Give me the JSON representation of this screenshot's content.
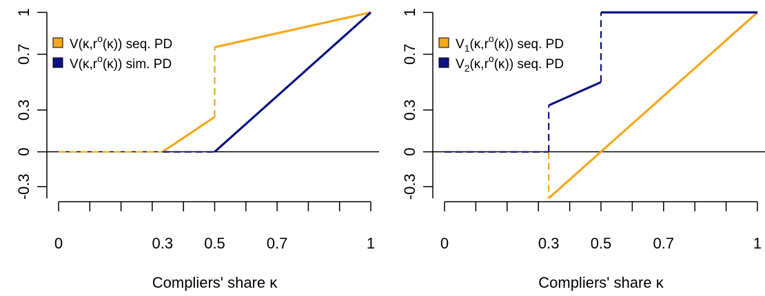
{
  "colors": {
    "seq": "#F5A81C",
    "sim": "#0D1283",
    "axis": "#000000"
  },
  "charts": [
    {
      "type": "line",
      "xlabel": "Compliers' share κ",
      "xticks": [
        {
          "v": 0,
          "label": "0"
        },
        {
          "v": 0.333,
          "label": "0.3"
        },
        {
          "v": 0.5,
          "label": "0.5"
        },
        {
          "v": 0.7,
          "label": "0.7"
        },
        {
          "v": 1,
          "label": "1"
        }
      ],
      "yticks": [
        {
          "v": -0.3,
          "label": "-0.3"
        },
        {
          "v": 0,
          "label": "0"
        },
        {
          "v": 0.3,
          "label": "0.3"
        },
        {
          "v": 0.7,
          "label": "0.7"
        },
        {
          "v": 1,
          "label": "1"
        }
      ],
      "xlim": [
        0,
        1
      ],
      "ylim": [
        -0.333,
        1
      ],
      "legend": [
        {
          "text": "V(κ,r",
          "sup": "o",
          "after": "(κ)) seq. PD",
          "sub": "",
          "color_key": "seq"
        },
        {
          "text": "V(κ,r",
          "sup": "o",
          "after": "(κ)) sim. PD",
          "sub": "",
          "color_key": "sim"
        }
      ],
      "series": [
        {
          "color_key": "seq",
          "segments": [
            {
              "style": "dashed",
              "points": [
                [
                  0,
                  0
                ],
                [
                  0.333,
                  0
                ]
              ]
            },
            {
              "style": "solid",
              "points": [
                [
                  0.333,
                  0
                ],
                [
                  0.5,
                  0.25
                ]
              ]
            },
            {
              "style": "dashed",
              "points": [
                [
                  0.5,
                  0.25
                ],
                [
                  0.5,
                  0.75
                ]
              ]
            },
            {
              "style": "solid",
              "points": [
                [
                  0.5,
                  0.75
                ],
                [
                  1,
                  1
                ]
              ]
            }
          ]
        },
        {
          "color_key": "sim",
          "segments": [
            {
              "style": "dashed",
              "points": [
                [
                  0.333,
                  0
                ],
                [
                  0.5,
                  0
                ]
              ]
            },
            {
              "style": "solid",
              "points": [
                [
                  0.5,
                  0
                ],
                [
                  1,
                  1
                ]
              ]
            }
          ]
        }
      ]
    },
    {
      "type": "line",
      "xlabel": "Compliers' share κ",
      "xticks": [
        {
          "v": 0,
          "label": "0"
        },
        {
          "v": 0.333,
          "label": "0.3"
        },
        {
          "v": 0.5,
          "label": "0.5"
        },
        {
          "v": 0.7,
          "label": "0.7"
        },
        {
          "v": 1,
          "label": "1"
        }
      ],
      "yticks": [
        {
          "v": -0.3,
          "label": "-0.3"
        },
        {
          "v": 0,
          "label": "0"
        },
        {
          "v": 0.3,
          "label": "0.3"
        },
        {
          "v": 0.7,
          "label": "0.7"
        },
        {
          "v": 1,
          "label": "1"
        }
      ],
      "xlim": [
        0,
        1
      ],
      "ylim": [
        -0.333,
        1
      ],
      "legend": [
        {
          "text": "V",
          "sub": "1",
          "mid": "(κ,r",
          "sup": "o",
          "after": "(κ)) seq. PD",
          "color_key": "seq"
        },
        {
          "text": "V",
          "sub": "2",
          "mid": "(κ,r",
          "sup": "o",
          "after": "(κ)) seq. PD",
          "color_key": "sim"
        }
      ],
      "series": [
        {
          "color_key": "seq",
          "segments": [
            {
              "style": "dashed",
              "points": [
                [
                  0,
                  0
                ],
                [
                  0.333,
                  0
                ]
              ]
            },
            {
              "style": "dashed",
              "points": [
                [
                  0.333,
                  0
                ],
                [
                  0.333,
                  -0.333
                ]
              ]
            },
            {
              "style": "solid",
              "points": [
                [
                  0.333,
                  -0.333
                ],
                [
                  1,
                  1
                ]
              ]
            }
          ]
        },
        {
          "color_key": "sim",
          "segments": [
            {
              "style": "dashed",
              "points": [
                [
                  0,
                  0
                ],
                [
                  0.333,
                  0
                ]
              ]
            },
            {
              "style": "dashed",
              "points": [
                [
                  0.333,
                  0
                ],
                [
                  0.333,
                  0.333
                ]
              ]
            },
            {
              "style": "solid",
              "points": [
                [
                  0.333,
                  0.333
                ],
                [
                  0.5,
                  0.5
                ]
              ]
            },
            {
              "style": "dashed",
              "points": [
                [
                  0.5,
                  0.5
                ],
                [
                  0.5,
                  1
                ]
              ]
            },
            {
              "style": "solid",
              "points": [
                [
                  0.5,
                  1
                ],
                [
                  1,
                  1
                ]
              ]
            }
          ]
        }
      ]
    }
  ],
  "chart_data": [
    {
      "type": "line",
      "xlabel": "Compliers' share κ",
      "ylabel": "",
      "xlim": [
        0,
        1
      ],
      "ylim": [
        -0.333,
        1
      ],
      "xtick_labels": [
        "0",
        "0.3",
        "0.5",
        "0.7",
        "1"
      ],
      "ytick_labels": [
        "-0.3",
        "0",
        "0.3",
        "0.7",
        "1"
      ],
      "legend_position": "upper-left",
      "series": [
        {
          "name": "V(κ,rᵒ(κ)) seq. PD",
          "color": "#F5A81C",
          "x": [
            0,
            0.333,
            0.5,
            0.5,
            1
          ],
          "y": [
            0,
            0,
            0.25,
            0.75,
            1
          ]
        },
        {
          "name": "V(κ,rᵒ(κ)) sim. PD",
          "color": "#0D1283",
          "x": [
            0.333,
            0.5,
            1
          ],
          "y": [
            0,
            0,
            1
          ]
        }
      ]
    },
    {
      "type": "line",
      "xlabel": "Compliers' share κ",
      "ylabel": "",
      "xlim": [
        0,
        1
      ],
      "ylim": [
        -0.333,
        1
      ],
      "xtick_labels": [
        "0",
        "0.3",
        "0.5",
        "0.7",
        "1"
      ],
      "ytick_labels": [
        "-0.3",
        "0",
        "0.3",
        "0.7",
        "1"
      ],
      "legend_position": "upper-left",
      "series": [
        {
          "name": "V₁(κ,rᵒ(κ)) seq. PD",
          "color": "#F5A81C",
          "x": [
            0,
            0.333,
            0.333,
            1
          ],
          "y": [
            0,
            0,
            -0.333,
            1
          ]
        },
        {
          "name": "V₂(κ,rᵒ(κ)) seq. PD",
          "color": "#0D1283",
          "x": [
            0,
            0.333,
            0.333,
            0.5,
            0.5,
            1
          ],
          "y": [
            0,
            0,
            0.333,
            0.5,
            1,
            1
          ]
        }
      ]
    }
  ]
}
